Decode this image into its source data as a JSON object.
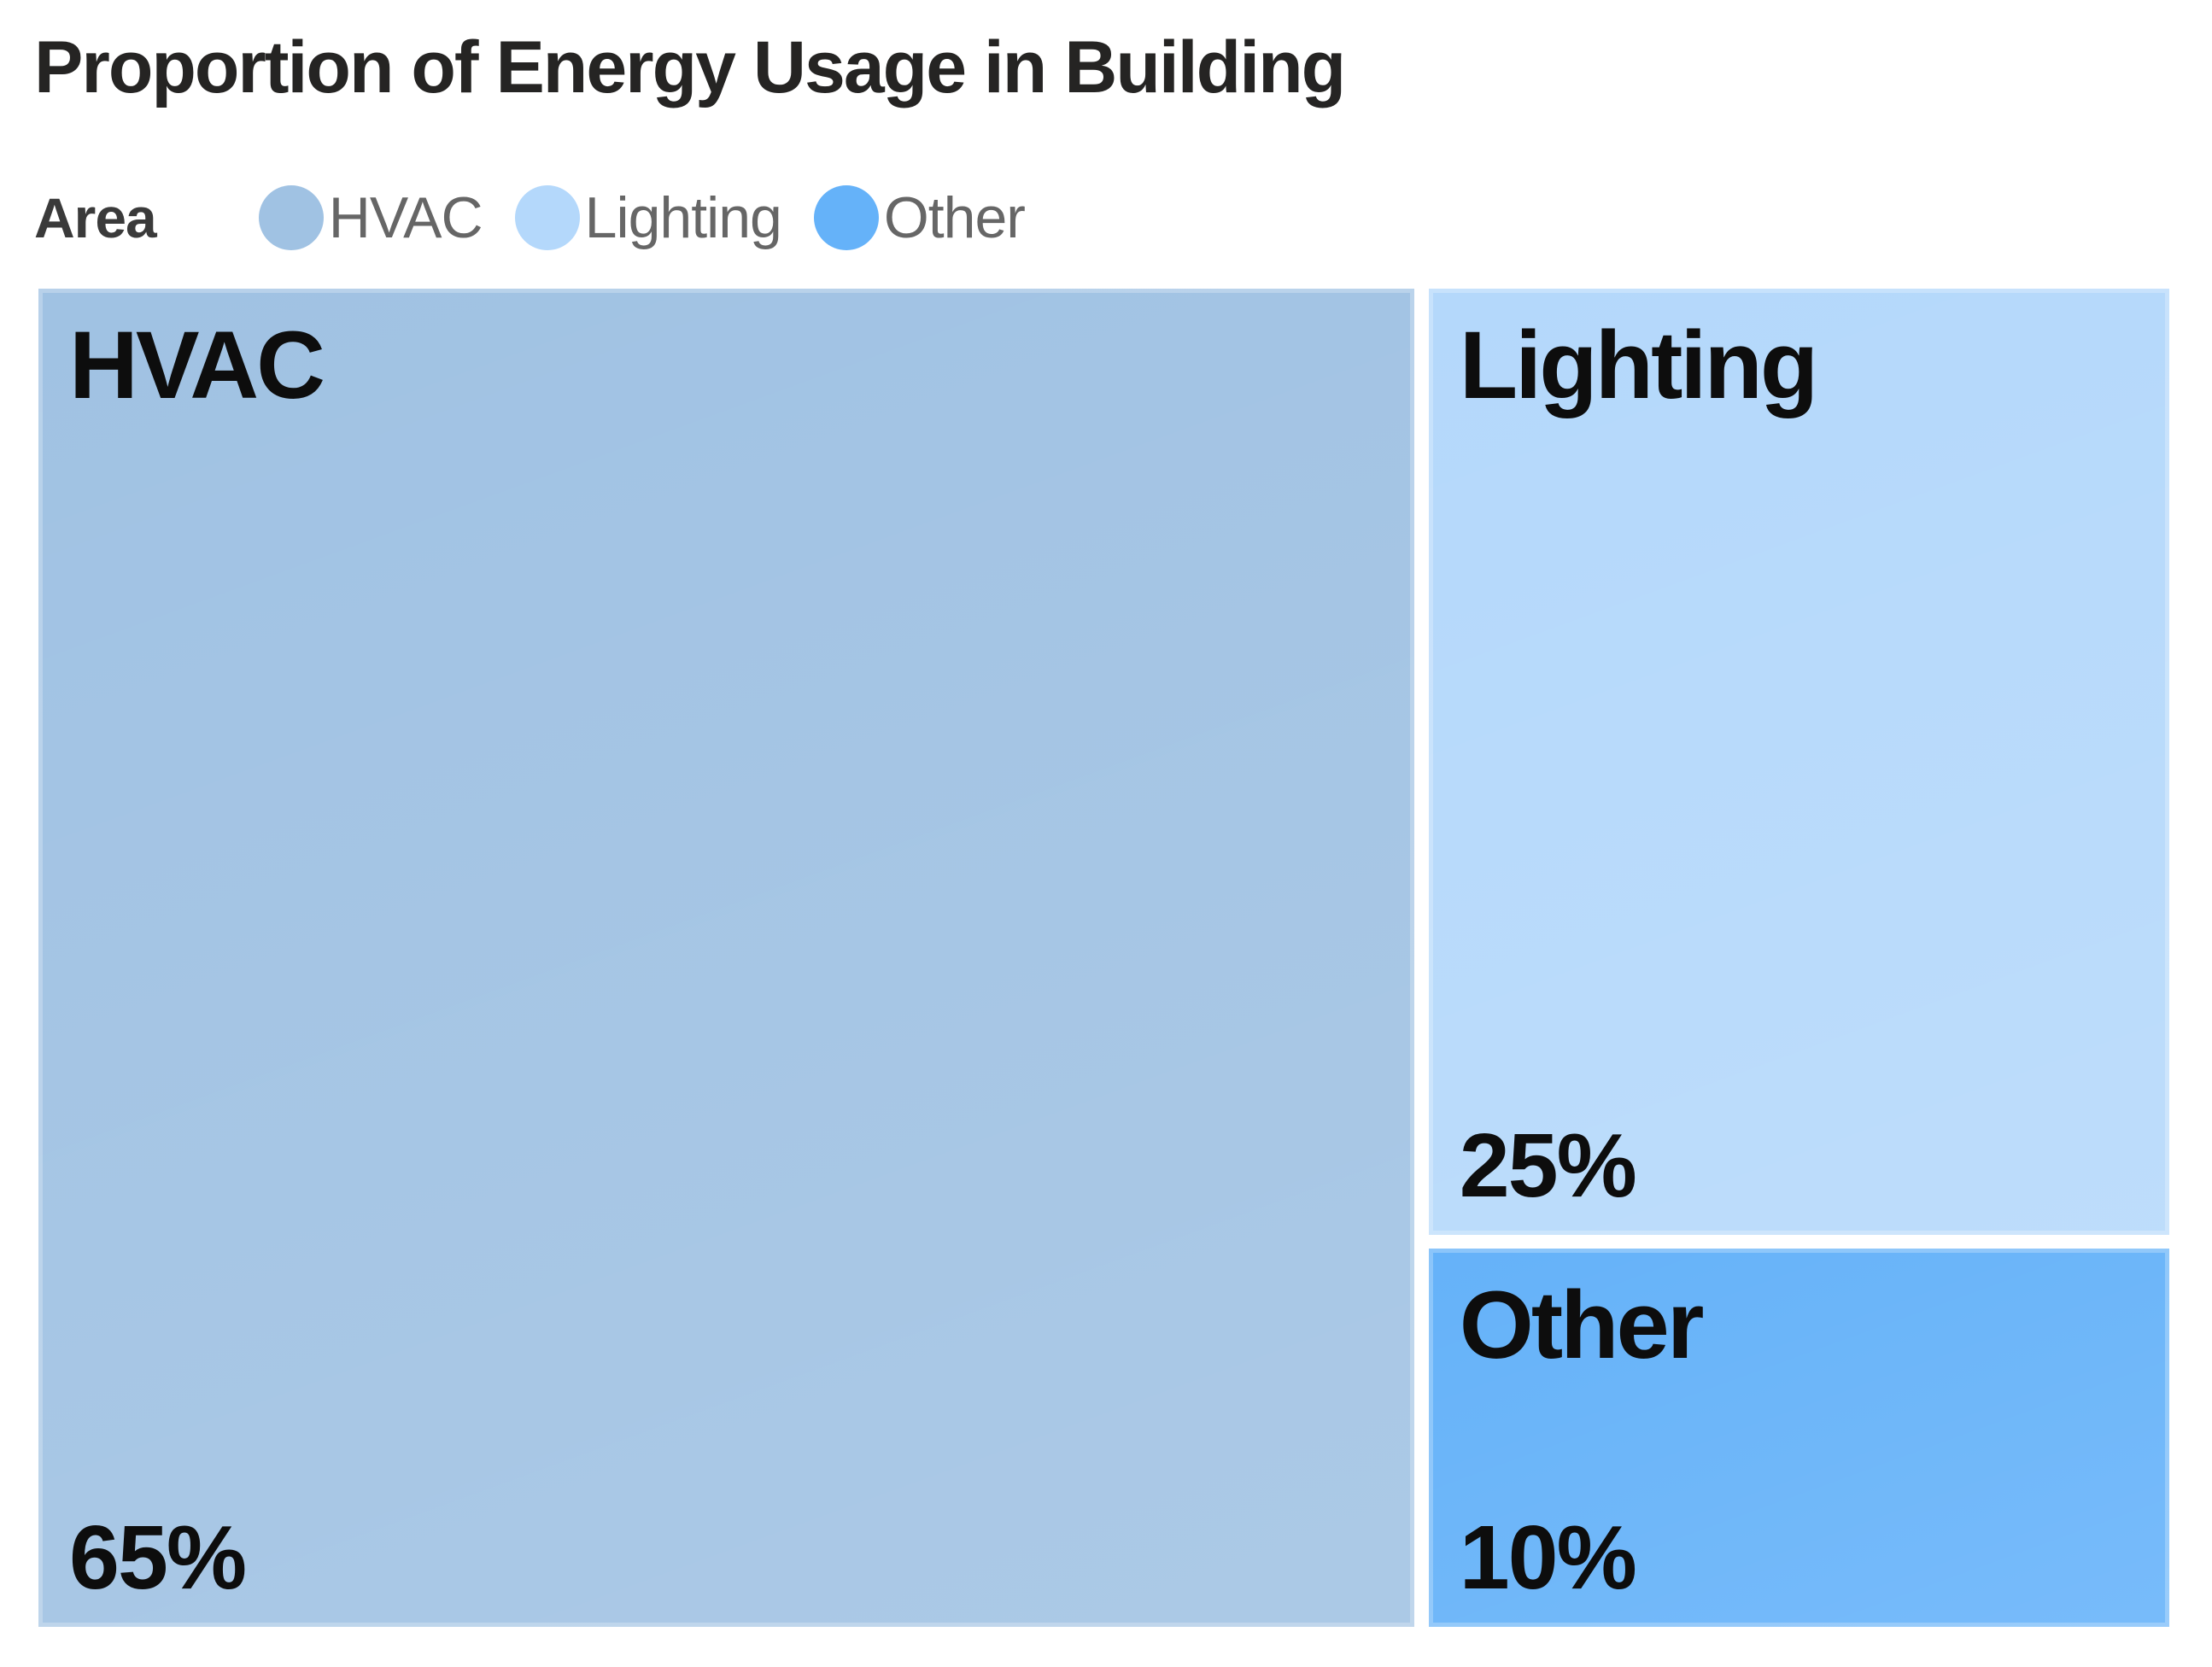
{
  "title": "Proportion of Energy Usage in Building",
  "legend": {
    "title": "Area",
    "items": [
      {
        "label": "HVAC",
        "color": "#a0c2e3"
      },
      {
        "label": "Lighting",
        "color": "#b4d8fb"
      },
      {
        "label": "Other",
        "color": "#65b2f9"
      }
    ]
  },
  "chart_data": {
    "type": "treemap",
    "title": "Proportion of Energy Usage in Building",
    "categories": [
      "HVAC",
      "Lighting",
      "Other"
    ],
    "values": [
      65,
      25,
      10
    ],
    "unit": "percent",
    "value_labels": [
      "65%",
      "25%",
      "10%"
    ],
    "colors": [
      "#a0c2e3",
      "#b4d8fb",
      "#65b2f9"
    ],
    "label_color": "#0d0d0d",
    "title_color": "#252423",
    "legend_title": "Area",
    "legend_position": "top",
    "background": "#ffffff"
  }
}
